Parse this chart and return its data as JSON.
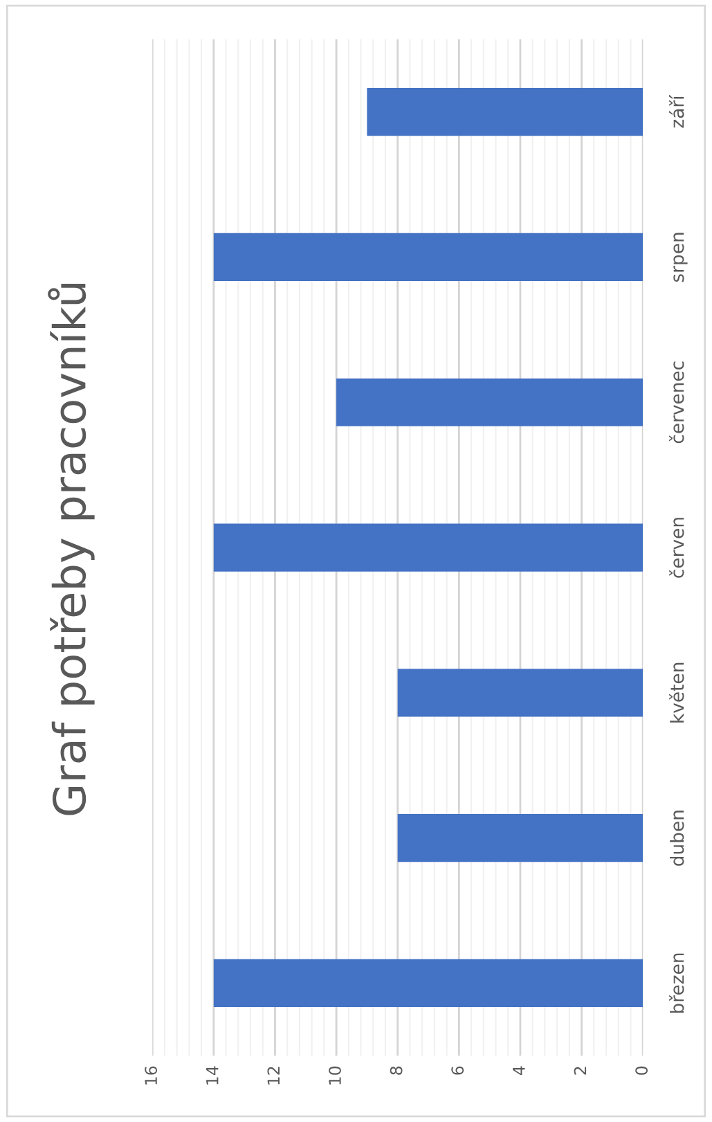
{
  "chart_data": {
    "type": "bar",
    "orientation": "horizontal",
    "title": "Graf potřeby pracovníků",
    "categories": [
      "září",
      "srpen",
      "červenec",
      "červen",
      "květen",
      "duben",
      "březen"
    ],
    "values": [
      9,
      14,
      10,
      14,
      8,
      8,
      14
    ],
    "color": "#4472c4",
    "xlim": [
      16,
      0
    ],
    "xticks": [
      0,
      2,
      4,
      6,
      8,
      10,
      12,
      14,
      16
    ],
    "grid": "x"
  }
}
